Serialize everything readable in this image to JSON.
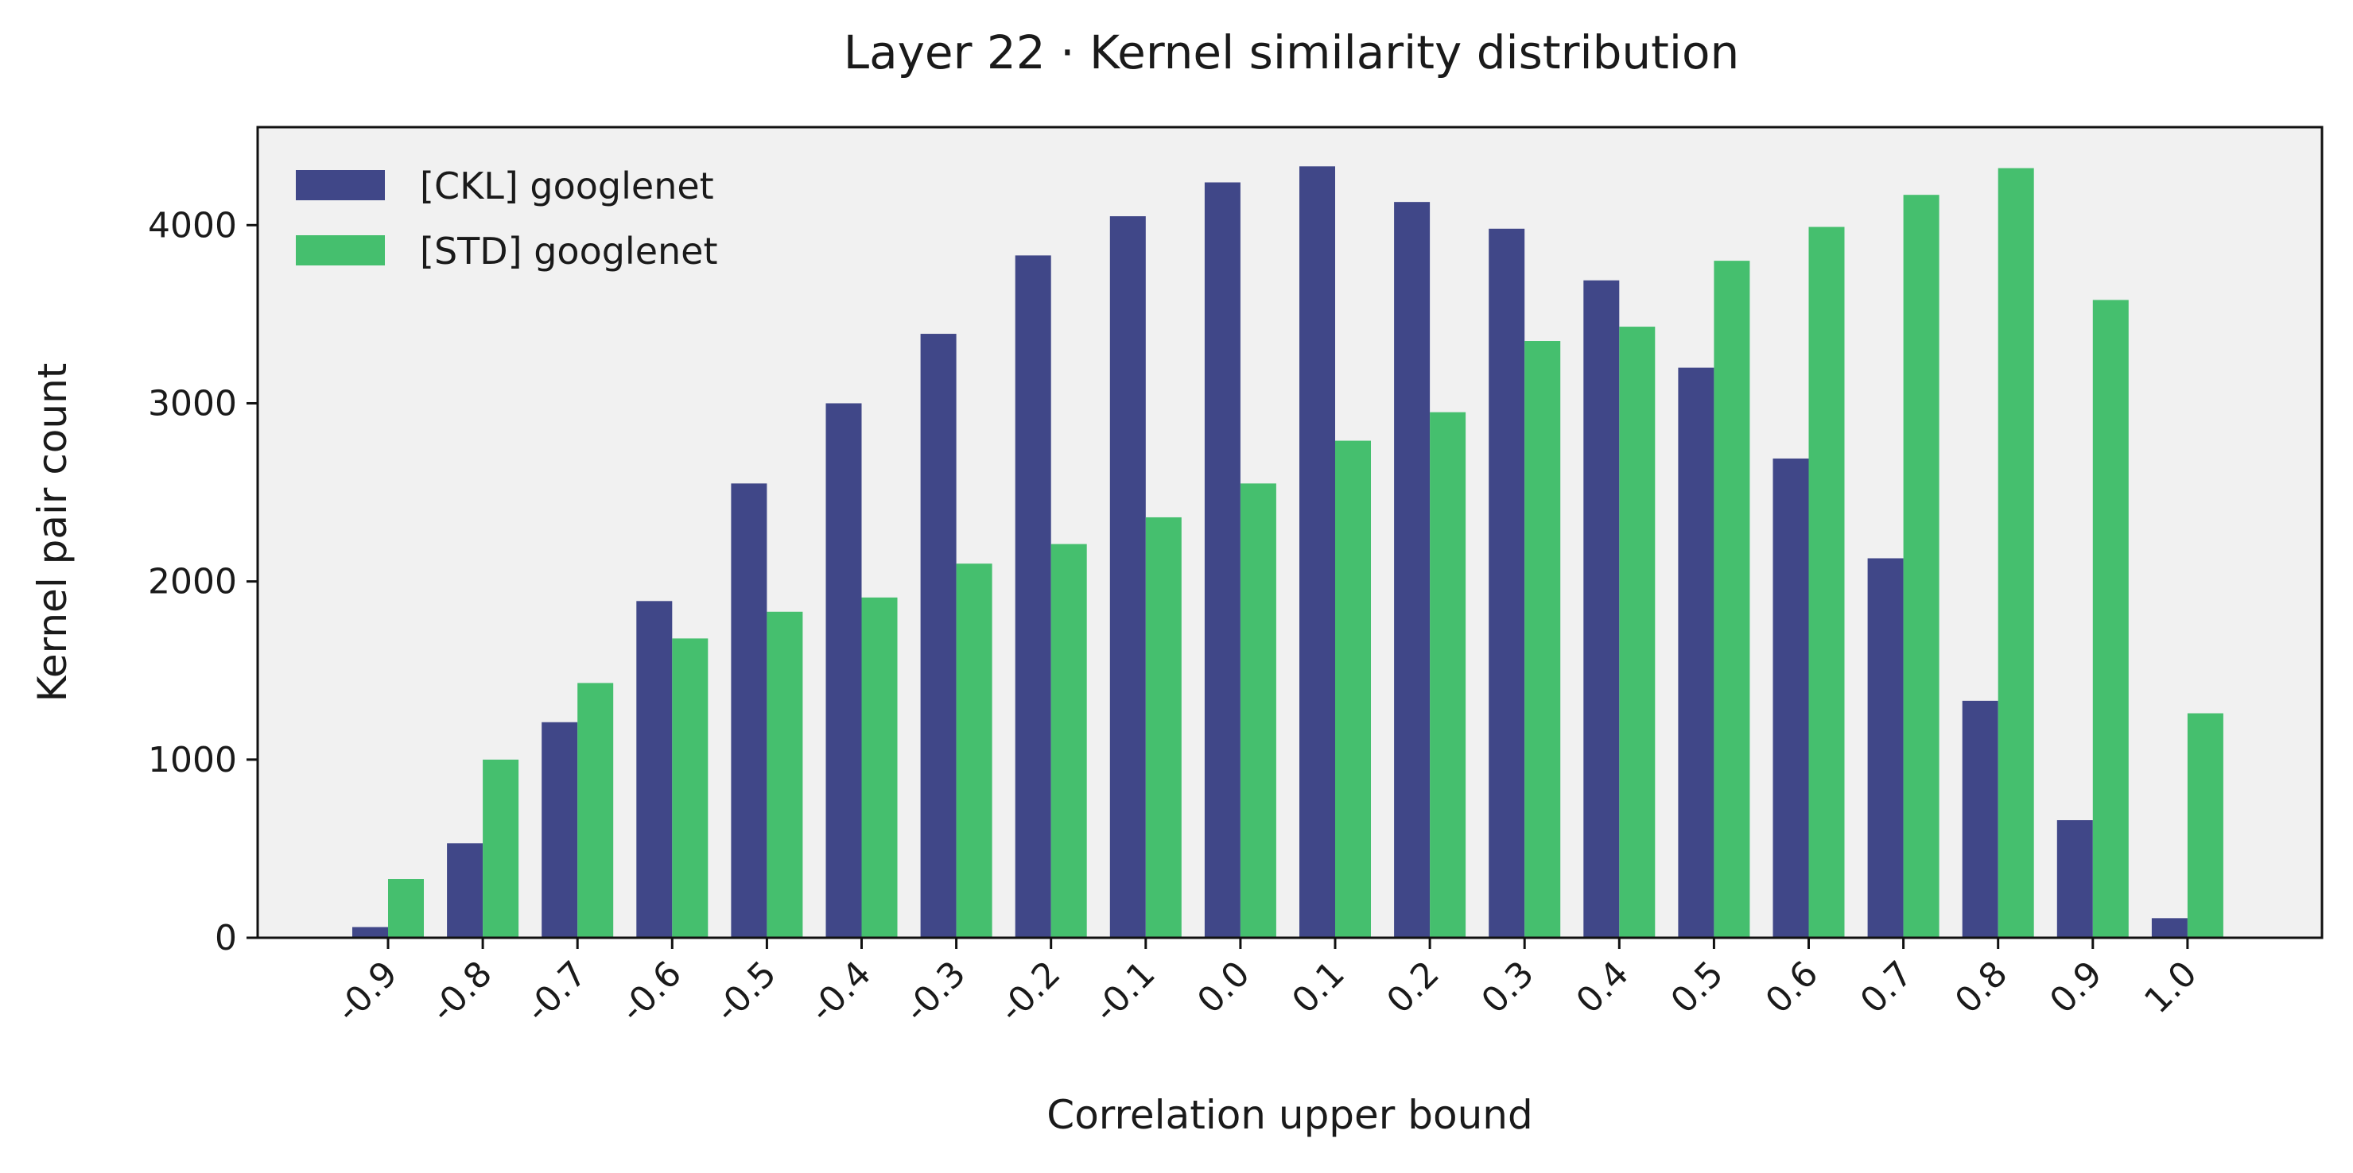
{
  "chart_data": {
    "type": "bar",
    "title": "Layer 22 · Kernel similarity distribution",
    "xlabel": "Correlation upper bound",
    "ylabel": "Kernel pair count",
    "categories": [
      "-0.9",
      "-0.8",
      "-0.7",
      "-0.6",
      "-0.5",
      "-0.4",
      "-0.3",
      "-0.2",
      "-0.1",
      "0.0",
      "0.1",
      "0.2",
      "0.3",
      "0.4",
      "0.5",
      "0.6",
      "0.7",
      "0.8",
      "0.9",
      "1.0"
    ],
    "series": [
      {
        "name": "[CKL] googlenet",
        "color": "#404788",
        "values": [
          60,
          530,
          1210,
          1890,
          2550,
          3000,
          3390,
          3830,
          4050,
          4240,
          4330,
          4130,
          3980,
          3690,
          3200,
          2690,
          2130,
          1330,
          660,
          110
        ]
      },
      {
        "name": "[STD] googlenet",
        "color": "#45BF6E",
        "values": [
          330,
          1000,
          1430,
          1680,
          1830,
          1910,
          2100,
          2210,
          2360,
          2550,
          2790,
          2950,
          3350,
          3430,
          3800,
          3990,
          4170,
          4320,
          3580,
          1260
        ]
      }
    ],
    "yticks": [
      0,
      1000,
      2000,
      3000,
      4000
    ],
    "ylim": [
      0,
      4550
    ],
    "legend": "top-left",
    "grid": false,
    "plot_background": "#f1f1f1"
  }
}
